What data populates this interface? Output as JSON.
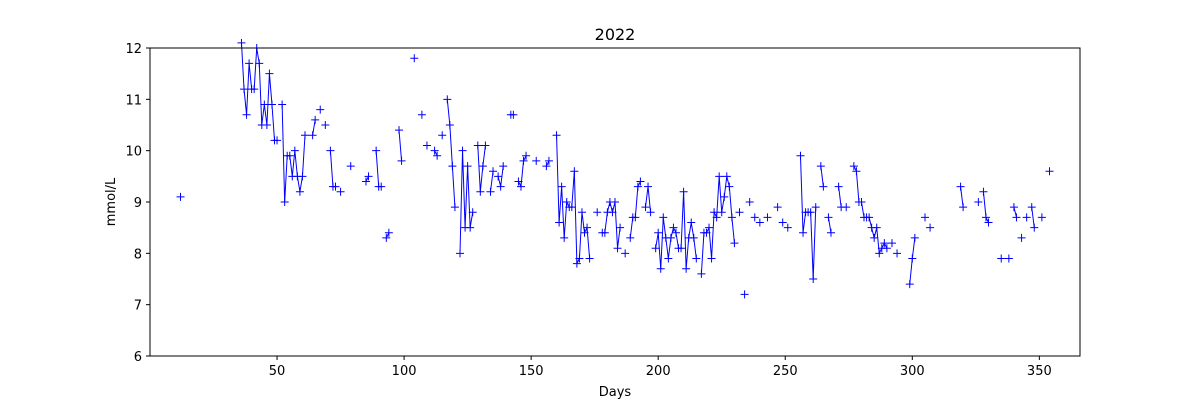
{
  "chart_data": {
    "type": "line",
    "title": "2022",
    "xlabel": "Days",
    "ylabel": "mmol/L",
    "xlim": [
      0,
      366
    ],
    "ylim": [
      6,
      12
    ],
    "xticks": [
      50,
      100,
      150,
      200,
      250,
      300,
      350
    ],
    "yticks": [
      6,
      7,
      8,
      9,
      10,
      11,
      12
    ],
    "grid": false,
    "color": "#0000ff",
    "marker": "+",
    "segments": [
      [
        [
          12,
          9.1
        ]
      ],
      [
        [
          36,
          12.1
        ],
        [
          37,
          11.2
        ],
        [
          38,
          10.7
        ],
        [
          39,
          11.7
        ],
        [
          40,
          11.2
        ],
        [
          41,
          11.2
        ],
        [
          42,
          12.0
        ],
        [
          43,
          11.7
        ],
        [
          44,
          10.5
        ],
        [
          45,
          10.9
        ],
        [
          46,
          10.5
        ],
        [
          47,
          11.5
        ],
        [
          48,
          10.9
        ],
        [
          49,
          10.2
        ],
        [
          50,
          10.2
        ]
      ],
      [
        [
          52,
          10.9
        ],
        [
          53,
          9.0
        ],
        [
          54,
          9.9
        ],
        [
          55,
          9.9
        ],
        [
          56,
          9.5
        ],
        [
          57,
          10.0
        ],
        [
          58,
          9.5
        ],
        [
          59,
          9.2
        ],
        [
          60,
          9.5
        ],
        [
          61,
          10.3
        ]
      ],
      [
        [
          64,
          10.3
        ],
        [
          65,
          10.6
        ]
      ],
      [
        [
          67,
          10.8
        ]
      ],
      [
        [
          69,
          10.5
        ]
      ],
      [
        [
          71,
          10.0
        ],
        [
          72,
          9.3
        ],
        [
          73,
          9.3
        ]
      ],
      [
        [
          75,
          9.2
        ]
      ],
      [
        [
          79,
          9.7
        ]
      ],
      [
        [
          85,
          9.4
        ],
        [
          86,
          9.5
        ]
      ],
      [
        [
          89,
          10.0
        ],
        [
          90,
          9.3
        ],
        [
          91,
          9.3
        ]
      ],
      [
        [
          93,
          8.3
        ],
        [
          94,
          8.4
        ]
      ],
      [
        [
          98,
          10.4
        ],
        [
          99,
          9.8
        ]
      ],
      [
        [
          104,
          11.8
        ]
      ],
      [
        [
          107,
          10.7
        ]
      ],
      [
        [
          109,
          10.1
        ]
      ],
      [
        [
          112,
          10.0
        ],
        [
          113,
          9.9
        ]
      ],
      [
        [
          115,
          10.3
        ]
      ],
      [
        [
          117,
          11.0
        ],
        [
          118,
          10.5
        ],
        [
          119,
          9.7
        ],
        [
          120,
          8.9
        ]
      ],
      [
        [
          122,
          8.0
        ],
        [
          123,
          10.0
        ],
        [
          124,
          8.5
        ],
        [
          125,
          9.7
        ],
        [
          126,
          8.5
        ],
        [
          127,
          8.8
        ]
      ],
      [
        [
          129,
          10.1
        ],
        [
          130,
          9.2
        ],
        [
          131,
          9.7
        ],
        [
          132,
          10.1
        ]
      ],
      [
        [
          134,
          9.2
        ],
        [
          135,
          9.6
        ]
      ],
      [
        [
          137,
          9.5
        ],
        [
          138,
          9.3
        ],
        [
          139,
          9.7
        ]
      ],
      [
        [
          142,
          10.7
        ],
        [
          143,
          10.7
        ]
      ],
      [
        [
          145,
          9.4
        ],
        [
          146,
          9.3
        ],
        [
          147,
          9.8
        ],
        [
          148,
          9.9
        ]
      ],
      [
        [
          152,
          9.8
        ]
      ],
      [
        [
          156,
          9.7
        ],
        [
          157,
          9.8
        ]
      ],
      [
        [
          160,
          10.3
        ],
        [
          161,
          8.6
        ],
        [
          162,
          9.3
        ],
        [
          163,
          8.3
        ],
        [
          164,
          9.0
        ],
        [
          165,
          8.9
        ],
        [
          166,
          8.9
        ],
        [
          167,
          9.6
        ],
        [
          168,
          7.8
        ],
        [
          169,
          7.9
        ],
        [
          170,
          8.8
        ],
        [
          171,
          8.4
        ],
        [
          172,
          8.5
        ],
        [
          173,
          7.9
        ]
      ],
      [
        [
          176,
          8.8
        ]
      ],
      [
        [
          178,
          8.4
        ],
        [
          179,
          8.4
        ],
        [
          180,
          8.8
        ],
        [
          181,
          9.0
        ],
        [
          182,
          8.8
        ],
        [
          183,
          9.0
        ],
        [
          184,
          8.1
        ],
        [
          185,
          8.5
        ]
      ],
      [
        [
          187,
          8.0
        ]
      ],
      [
        [
          189,
          8.3
        ],
        [
          190,
          8.7
        ],
        [
          191,
          8.7
        ],
        [
          192,
          9.3
        ],
        [
          193,
          9.4
        ]
      ],
      [
        [
          195,
          8.9
        ],
        [
          196,
          9.3
        ],
        [
          197,
          8.8
        ]
      ],
      [
        [
          199,
          8.1
        ],
        [
          200,
          8.4
        ],
        [
          201,
          7.7
        ],
        [
          202,
          8.7
        ],
        [
          203,
          8.3
        ],
        [
          204,
          7.9
        ],
        [
          205,
          8.3
        ],
        [
          206,
          8.5
        ],
        [
          207,
          8.4
        ],
        [
          208,
          8.1
        ],
        [
          209,
          8.1
        ],
        [
          210,
          9.2
        ],
        [
          211,
          7.7
        ],
        [
          212,
          8.3
        ],
        [
          213,
          8.6
        ],
        [
          214,
          8.3
        ],
        [
          215,
          7.9
        ]
      ],
      [
        [
          217,
          7.6
        ],
        [
          218,
          8.4
        ],
        [
          219,
          8.4
        ],
        [
          220,
          8.5
        ],
        [
          221,
          7.9
        ],
        [
          222,
          8.8
        ],
        [
          223,
          8.7
        ],
        [
          224,
          9.5
        ],
        [
          225,
          8.8
        ],
        [
          226,
          9.1
        ],
        [
          227,
          9.5
        ],
        [
          228,
          9.3
        ],
        [
          229,
          8.7
        ],
        [
          230,
          8.2
        ]
      ],
      [
        [
          232,
          8.8
        ]
      ],
      [
        [
          234,
          7.2
        ]
      ],
      [
        [
          236,
          9.0
        ]
      ],
      [
        [
          238,
          8.7
        ]
      ],
      [
        [
          240,
          8.6
        ]
      ],
      [
        [
          243,
          8.7
        ]
      ],
      [
        [
          247,
          8.9
        ]
      ],
      [
        [
          249,
          8.6
        ]
      ],
      [
        [
          251,
          8.5
        ]
      ],
      [
        [
          256,
          9.9
        ],
        [
          257,
          8.4
        ],
        [
          258,
          8.8
        ],
        [
          259,
          8.8
        ],
        [
          260,
          8.8
        ],
        [
          261,
          7.5
        ],
        [
          262,
          8.9
        ]
      ],
      [
        [
          264,
          9.7
        ],
        [
          265,
          9.3
        ]
      ],
      [
        [
          267,
          8.7
        ],
        [
          268,
          8.4
        ]
      ],
      [
        [
          271,
          9.3
        ],
        [
          272,
          8.9
        ]
      ],
      [
        [
          274,
          8.9
        ]
      ],
      [
        [
          277,
          9.7
        ],
        [
          278,
          9.6
        ],
        [
          279,
          9.0
        ],
        [
          280,
          9.0
        ],
        [
          281,
          8.7
        ],
        [
          282,
          8.7
        ],
        [
          283,
          8.7
        ],
        [
          284,
          8.5
        ],
        [
          285,
          8.3
        ],
        [
          286,
          8.5
        ],
        [
          287,
          8.0
        ],
        [
          288,
          8.1
        ],
        [
          289,
          8.2
        ],
        [
          290,
          8.1
        ]
      ],
      [
        [
          292,
          8.2
        ]
      ],
      [
        [
          294,
          8.0
        ]
      ],
      [
        [
          299,
          7.4
        ],
        [
          300,
          7.9
        ],
        [
          301,
          8.3
        ]
      ],
      [
        [
          305,
          8.7
        ]
      ],
      [
        [
          307,
          8.5
        ]
      ],
      [
        [
          319,
          9.3
        ],
        [
          320,
          8.9
        ]
      ],
      [
        [
          326,
          9.0
        ]
      ],
      [
        [
          328,
          9.2
        ],
        [
          329,
          8.7
        ],
        [
          330,
          8.6
        ]
      ],
      [
        [
          335,
          7.9
        ]
      ],
      [
        [
          338,
          7.9
        ]
      ],
      [
        [
          340,
          8.9
        ],
        [
          341,
          8.7
        ]
      ],
      [
        [
          343,
          8.3
        ]
      ],
      [
        [
          345,
          8.7
        ]
      ],
      [
        [
          347,
          8.9
        ],
        [
          348,
          8.5
        ]
      ],
      [
        [
          351,
          8.7
        ]
      ],
      [
        [
          354,
          9.6
        ]
      ]
    ]
  }
}
